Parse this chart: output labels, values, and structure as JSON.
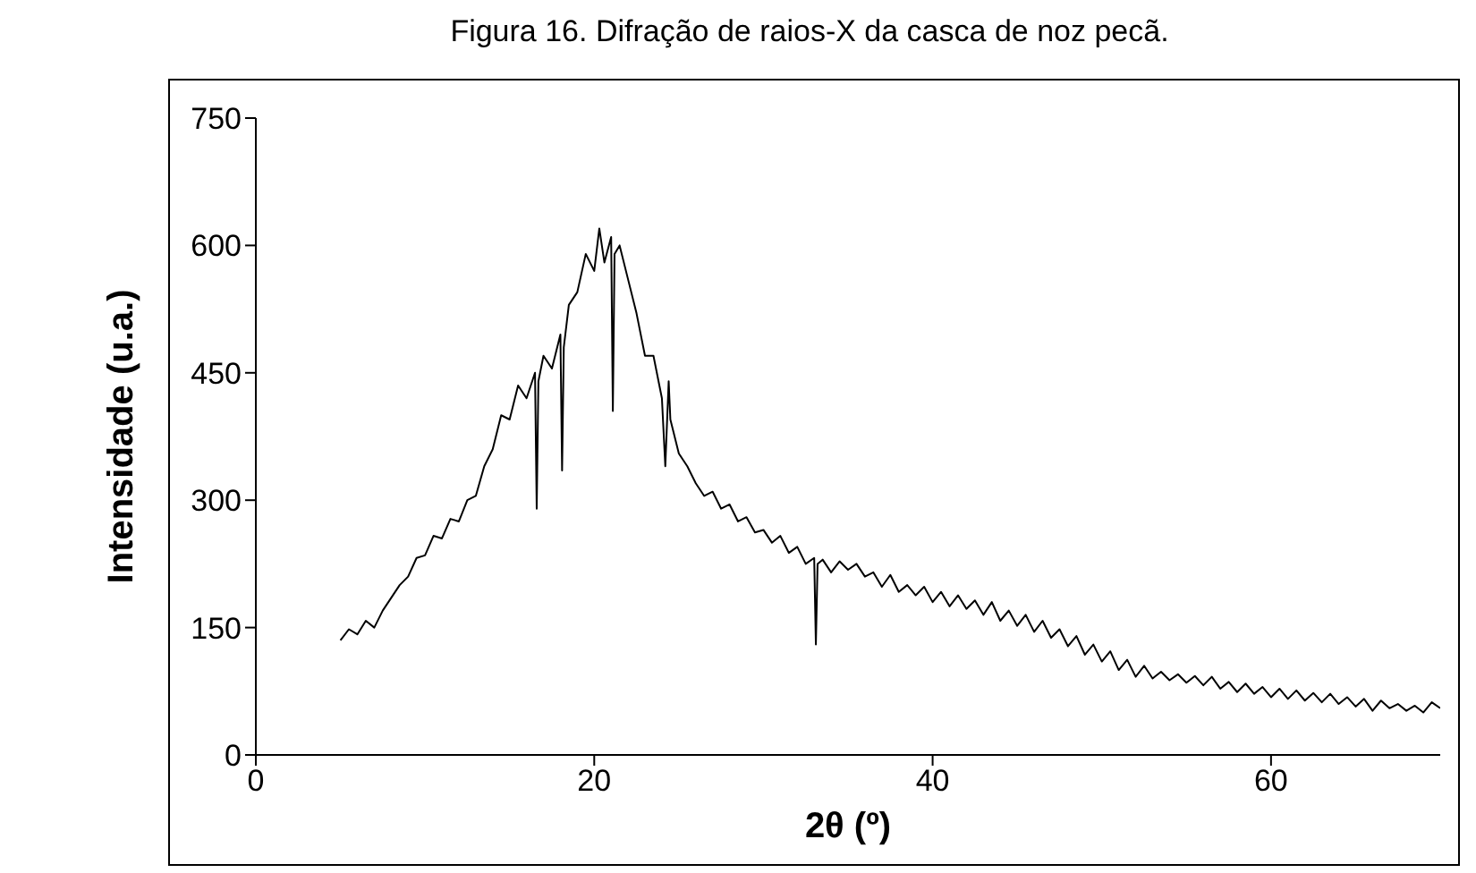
{
  "chart_data": {
    "type": "line",
    "title": "Figura 16. Difração de raios-X da casca de noz pecã.",
    "xlabel": "2θ  (º)",
    "ylabel": "Intensidade (u.a.)",
    "xlim": [
      0,
      70
    ],
    "xticks": [
      0,
      20,
      40,
      60
    ],
    "ylim": [
      0,
      750
    ],
    "yticks": [
      0,
      150,
      300,
      450,
      600,
      750
    ],
    "grid": false,
    "legend": false,
    "marker": "none",
    "line_style": "solid",
    "x": [
      5,
      5.5,
      6,
      6.5,
      7,
      7.5,
      8,
      8.5,
      9,
      9.5,
      10,
      10.5,
      11,
      11.5,
      12,
      12.5,
      13,
      13.5,
      14,
      14.5,
      15,
      15.5,
      16,
      16.5,
      16.6,
      16.7,
      17,
      17.5,
      18,
      18.1,
      18.2,
      18.5,
      19,
      19.5,
      20,
      20.3,
      20.6,
      21,
      21.1,
      21.2,
      21.5,
      22,
      22.5,
      23,
      23.5,
      24,
      24.2,
      24.4,
      24.5,
      25,
      25.5,
      26,
      26.5,
      27,
      27.5,
      28,
      28.5,
      29,
      29.5,
      30,
      30.5,
      31,
      31.5,
      32,
      32.5,
      33,
      33.1,
      33.2,
      33.5,
      34,
      34.5,
      35,
      35.5,
      36,
      36.5,
      37,
      37.5,
      38,
      38.5,
      39,
      39.5,
      40,
      40.5,
      41,
      41.5,
      42,
      42.5,
      43,
      43.5,
      44,
      44.5,
      45,
      45.5,
      46,
      46.5,
      47,
      47.5,
      48,
      48.5,
      49,
      49.5,
      50,
      50.5,
      51,
      51.5,
      52,
      52.5,
      53,
      53.5,
      54,
      54.5,
      55,
      55.5,
      56,
      56.5,
      57,
      57.5,
      58,
      58.5,
      59,
      59.5,
      60,
      60.5,
      61,
      61.5,
      62,
      62.5,
      63,
      63.5,
      64,
      64.5,
      65,
      65.5,
      66,
      66.5,
      67,
      67.5,
      68,
      68.5,
      69,
      69.5,
      70
    ],
    "series": [
      {
        "color": "#000000",
        "values": [
          135,
          148,
          142,
          158,
          150,
          170,
          185,
          200,
          210,
          232,
          235,
          258,
          255,
          278,
          275,
          300,
          305,
          340,
          360,
          400,
          395,
          435,
          420,
          450,
          290,
          440,
          470,
          455,
          495,
          335,
          480,
          530,
          545,
          590,
          570,
          620,
          580,
          610,
          405,
          590,
          600,
          560,
          520,
          470,
          470,
          420,
          340,
          440,
          395,
          355,
          340,
          320,
          305,
          310,
          290,
          295,
          275,
          280,
          262,
          265,
          250,
          258,
          238,
          245,
          225,
          232,
          130,
          225,
          230,
          215,
          228,
          218,
          225,
          210,
          215,
          198,
          212,
          192,
          200,
          188,
          198,
          180,
          192,
          175,
          188,
          172,
          182,
          165,
          180,
          158,
          170,
          152,
          165,
          145,
          158,
          138,
          148,
          128,
          140,
          118,
          130,
          110,
          122,
          100,
          112,
          92,
          105,
          90,
          98,
          88,
          95,
          85,
          93,
          82,
          92,
          78,
          86,
          74,
          84,
          72,
          80,
          68,
          78,
          66,
          76,
          64,
          73,
          62,
          72,
          60,
          68,
          57,
          66,
          52,
          64,
          55,
          60,
          52,
          58,
          50,
          62,
          55
        ]
      }
    ]
  }
}
